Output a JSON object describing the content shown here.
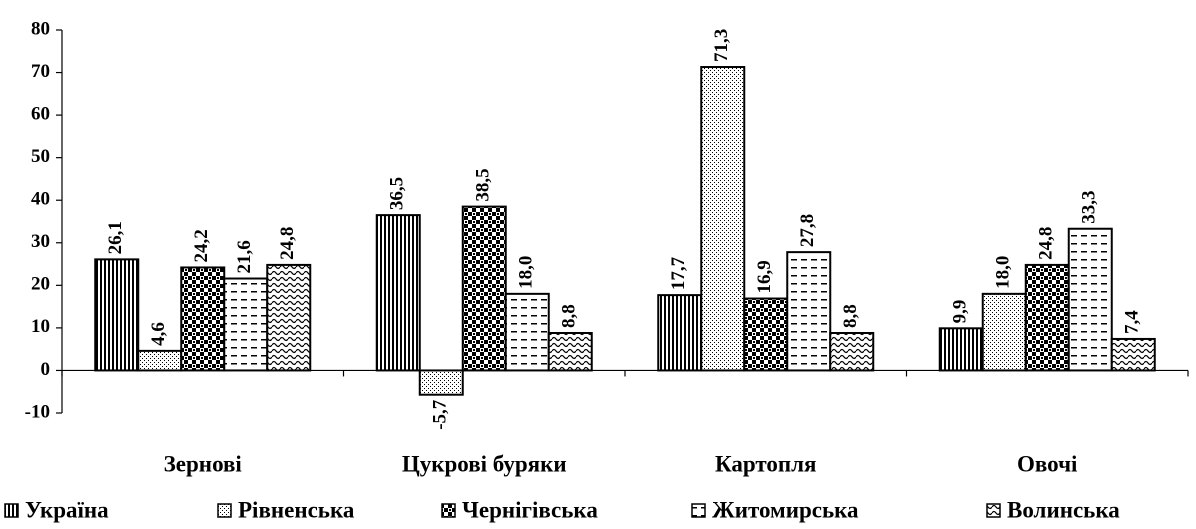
{
  "chart_data": {
    "type": "bar",
    "categories": [
      "Зернові",
      "Цукрові буряки",
      "Картопля",
      "Овочі"
    ],
    "series": [
      {
        "name": "Україна",
        "color": "#000000",
        "pattern": "vertical-lines",
        "values": [
          26.1,
          36.5,
          17.7,
          9.9
        ],
        "value_labels": [
          "26,1",
          "36,5",
          "17,7",
          "9,9"
        ]
      },
      {
        "name": "Рівненська",
        "color": "#000000",
        "pattern": "dots",
        "values": [
          4.6,
          -5.7,
          71.3,
          18.0
        ],
        "value_labels": [
          "4,6",
          "-5,7",
          "71,3",
          "18,0"
        ]
      },
      {
        "name": "Чернігівська",
        "color": "#000000",
        "pattern": "checker",
        "values": [
          24.2,
          38.5,
          16.9,
          24.8
        ],
        "value_labels": [
          "24,2",
          "38,5",
          "16,9",
          "24,8"
        ]
      },
      {
        "name": "Житомирська",
        "color": "#000000",
        "pattern": "dashes",
        "values": [
          21.6,
          18.0,
          27.8,
          33.3
        ],
        "value_labels": [
          "21,6",
          "18,0",
          "27,8",
          "33,3"
        ]
      },
      {
        "name": "Волинська",
        "color": "#000000",
        "pattern": "waves",
        "values": [
          24.8,
          8.8,
          8.8,
          7.4
        ],
        "value_labels": [
          "24,8",
          "8,8",
          "8,8",
          "7,4"
        ]
      }
    ],
    "ylim": [
      -10,
      80
    ],
    "yticks": [
      -10,
      0,
      10,
      20,
      30,
      40,
      50,
      60,
      70,
      80
    ],
    "legend": "bottom"
  }
}
